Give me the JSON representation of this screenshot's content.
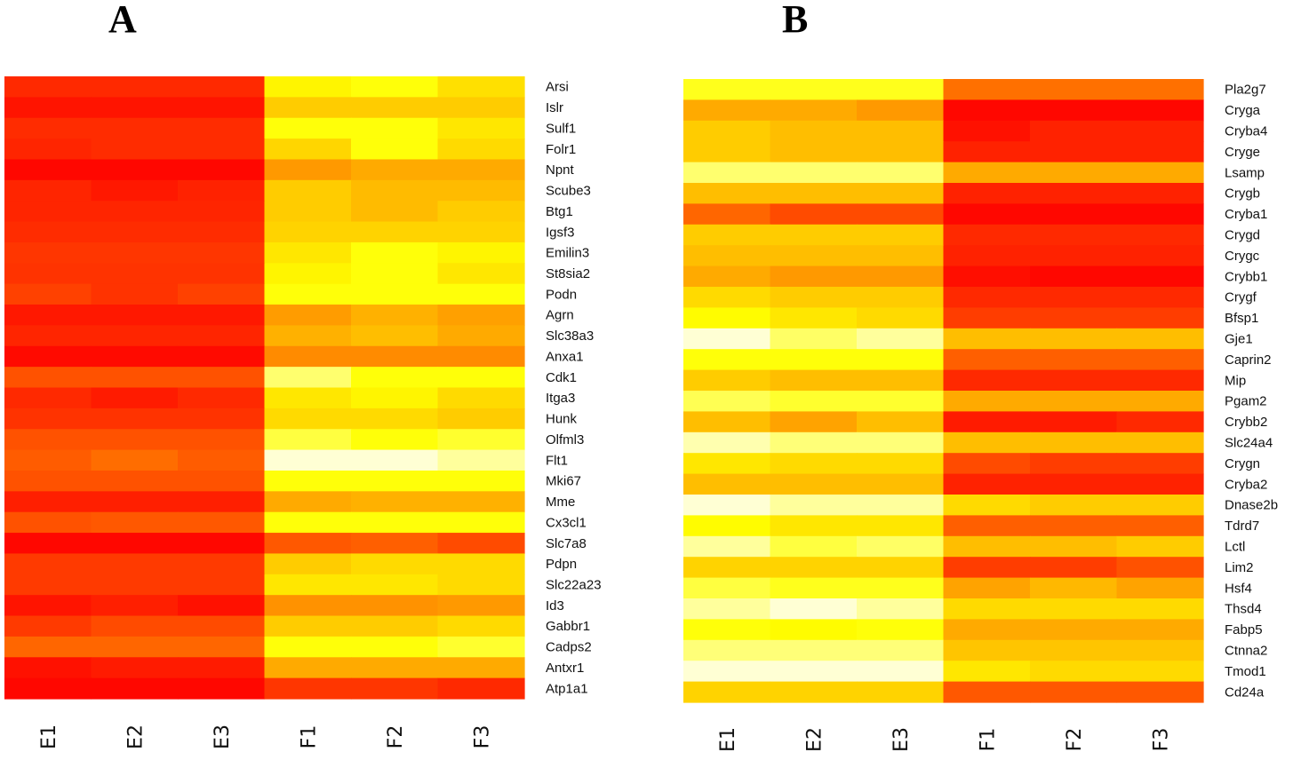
{
  "chart_data": [
    {
      "type": "heatmap",
      "title": "A",
      "palette": "heat (red - orange - yellow - white)",
      "colors": {
        "low": "#FF0000",
        "mid": "#FF9900",
        "high": "#FFFF00",
        "max": "#FFFFE6"
      },
      "columns": [
        "E1",
        "E2",
        "E3",
        "F1",
        "F2",
        "F3"
      ],
      "rows": [
        "Arsi",
        "Islr",
        "Sulf1",
        "Folr1",
        "Npnt",
        "Scube3",
        "Btg1",
        "Igsf3",
        "Emilin3",
        "St8sia2",
        "Podn",
        "Agrn",
        "Slc38a3",
        "Anxa1",
        "Cdk1",
        "Itga3",
        "Hunk",
        "Olfml3",
        "Flt1",
        "Mki67",
        "Mme",
        "Cx3cl1",
        "Slc7a8",
        "Pdpn",
        "Slc22a23",
        "Id3",
        "Gabbr1",
        "Cadps2",
        "Antxr1",
        "Atp1a1"
      ],
      "values": [
        [
          0.12,
          0.12,
          0.12,
          0.72,
          0.76,
          0.66
        ],
        [
          0.06,
          0.06,
          0.06,
          0.6,
          0.6,
          0.6
        ],
        [
          0.13,
          0.13,
          0.13,
          0.76,
          0.76,
          0.68
        ],
        [
          0.11,
          0.13,
          0.13,
          0.63,
          0.76,
          0.64
        ],
        [
          0.02,
          0.02,
          0.02,
          0.45,
          0.5,
          0.5
        ],
        [
          0.11,
          0.07,
          0.1,
          0.6,
          0.55,
          0.55
        ],
        [
          0.11,
          0.11,
          0.11,
          0.6,
          0.55,
          0.6
        ],
        [
          0.13,
          0.13,
          0.13,
          0.62,
          0.62,
          0.62
        ],
        [
          0.16,
          0.16,
          0.16,
          0.68,
          0.76,
          0.72
        ],
        [
          0.15,
          0.15,
          0.15,
          0.72,
          0.76,
          0.68
        ],
        [
          0.19,
          0.15,
          0.19,
          0.76,
          0.76,
          0.76
        ],
        [
          0.07,
          0.07,
          0.07,
          0.46,
          0.52,
          0.47
        ],
        [
          0.11,
          0.11,
          0.11,
          0.52,
          0.56,
          0.5
        ],
        [
          0.03,
          0.03,
          0.03,
          0.41,
          0.41,
          0.41
        ],
        [
          0.24,
          0.24,
          0.24,
          0.87,
          0.76,
          0.76
        ],
        [
          0.12,
          0.08,
          0.12,
          0.68,
          0.72,
          0.64
        ],
        [
          0.15,
          0.15,
          0.15,
          0.64,
          0.64,
          0.6
        ],
        [
          0.24,
          0.24,
          0.24,
          0.82,
          0.76,
          0.8
        ],
        [
          0.27,
          0.32,
          0.27,
          0.98,
          0.98,
          0.92
        ],
        [
          0.24,
          0.24,
          0.24,
          0.76,
          0.76,
          0.76
        ],
        [
          0.09,
          0.09,
          0.09,
          0.5,
          0.52,
          0.52
        ],
        [
          0.24,
          0.26,
          0.26,
          0.76,
          0.76,
          0.76
        ],
        [
          0.02,
          0.02,
          0.02,
          0.26,
          0.28,
          0.22
        ],
        [
          0.17,
          0.17,
          0.17,
          0.6,
          0.64,
          0.64
        ],
        [
          0.17,
          0.17,
          0.17,
          0.68,
          0.68,
          0.64
        ],
        [
          0.06,
          0.09,
          0.05,
          0.43,
          0.43,
          0.45
        ],
        [
          0.17,
          0.22,
          0.22,
          0.6,
          0.6,
          0.64
        ],
        [
          0.3,
          0.3,
          0.3,
          0.76,
          0.76,
          0.8
        ],
        [
          0.05,
          0.08,
          0.08,
          0.5,
          0.5,
          0.5
        ],
        [
          0.02,
          0.02,
          0.02,
          0.16,
          0.16,
          0.12
        ]
      ]
    },
    {
      "type": "heatmap",
      "title": "B",
      "palette": "heat (red - orange - yellow - white)",
      "colors": {
        "low": "#FF0000",
        "mid": "#FF9900",
        "high": "#FFFF00",
        "max": "#FFFFE6"
      },
      "columns": [
        "E1",
        "E2",
        "E3",
        "F1",
        "F2",
        "F3"
      ],
      "rows": [
        "Pla2g7",
        "Cryga",
        "Cryba4",
        "Cryge",
        "Lsamp",
        "Crygb",
        "Cryba1",
        "Crygd",
        "Crygc",
        "Crybb1",
        "Crygf",
        "Bfsp1",
        "Gje1",
        "Caprin2",
        "Mip",
        "Pgam2",
        "Crybb2",
        "Slc24a4",
        "Crygn",
        "Cryba2",
        "Dnase2b",
        "Tdrd7",
        "Lctl",
        "Lim2",
        "Hsf4",
        "Thsd4",
        "Fabp5",
        "Ctnna2",
        "Tmod1",
        "Cd24a"
      ],
      "values": [
        [
          0.78,
          0.78,
          0.78,
          0.33,
          0.33,
          0.33
        ],
        [
          0.5,
          0.5,
          0.45,
          0.02,
          0.02,
          0.02
        ],
        [
          0.6,
          0.56,
          0.56,
          0.05,
          0.1,
          0.1
        ],
        [
          0.6,
          0.56,
          0.56,
          0.1,
          0.1,
          0.1
        ],
        [
          0.87,
          0.87,
          0.87,
          0.5,
          0.5,
          0.5
        ],
        [
          0.56,
          0.56,
          0.56,
          0.1,
          0.1,
          0.1
        ],
        [
          0.3,
          0.22,
          0.22,
          0.02,
          0.02,
          0.02
        ],
        [
          0.6,
          0.6,
          0.6,
          0.12,
          0.12,
          0.12
        ],
        [
          0.56,
          0.56,
          0.56,
          0.1,
          0.1,
          0.1
        ],
        [
          0.5,
          0.45,
          0.45,
          0.04,
          0.02,
          0.02
        ],
        [
          0.64,
          0.6,
          0.6,
          0.12,
          0.12,
          0.12
        ],
        [
          0.74,
          0.68,
          0.64,
          0.18,
          0.18,
          0.18
        ],
        [
          0.98,
          0.86,
          0.92,
          0.56,
          0.56,
          0.56
        ],
        [
          0.76,
          0.76,
          0.76,
          0.28,
          0.28,
          0.28
        ],
        [
          0.6,
          0.56,
          0.56,
          0.12,
          0.12,
          0.12
        ],
        [
          0.84,
          0.8,
          0.8,
          0.5,
          0.5,
          0.5
        ],
        [
          0.56,
          0.48,
          0.56,
          0.08,
          0.08,
          0.12
        ],
        [
          0.94,
          0.88,
          0.88,
          0.56,
          0.56,
          0.56
        ],
        [
          0.68,
          0.64,
          0.64,
          0.22,
          0.18,
          0.18
        ],
        [
          0.56,
          0.56,
          0.56,
          0.1,
          0.1,
          0.1
        ],
        [
          0.98,
          0.92,
          0.92,
          0.64,
          0.6,
          0.6
        ],
        [
          0.74,
          0.68,
          0.68,
          0.28,
          0.28,
          0.28
        ],
        [
          0.92,
          0.82,
          0.86,
          0.56,
          0.56,
          0.6
        ],
        [
          0.62,
          0.62,
          0.62,
          0.18,
          0.18,
          0.24
        ],
        [
          0.82,
          0.78,
          0.78,
          0.48,
          0.54,
          0.48
        ],
        [
          0.92,
          0.98,
          0.92,
          0.64,
          0.64,
          0.64
        ],
        [
          0.76,
          0.74,
          0.76,
          0.5,
          0.5,
          0.5
        ],
        [
          0.88,
          0.88,
          0.88,
          0.58,
          0.58,
          0.58
        ],
        [
          0.98,
          0.98,
          0.98,
          0.68,
          0.64,
          0.64
        ],
        [
          0.62,
          0.62,
          0.62,
          0.26,
          0.26,
          0.26
        ]
      ]
    }
  ]
}
